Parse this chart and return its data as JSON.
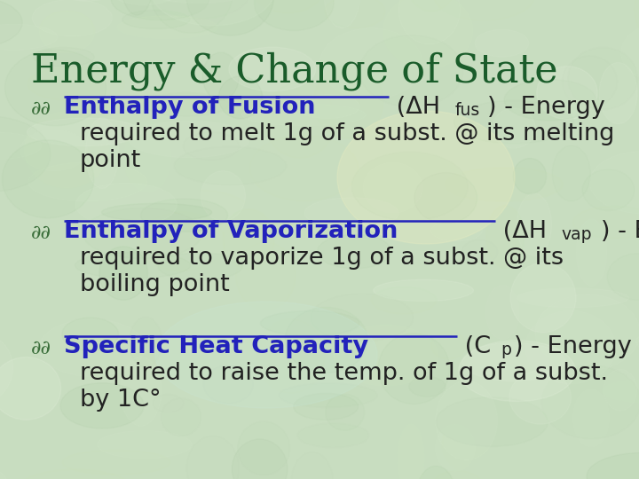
{
  "title": "Energy & Change of State",
  "title_color": "#1a5c2a",
  "title_fontsize": 32,
  "background_color": "#c8ddc0",
  "text_color": "#222222",
  "link_color": "#2222bb",
  "bullet_color": "#3a6e3a",
  "figsize": [
    7.2,
    5.4
  ],
  "dpi": 100,
  "bullets": [
    {
      "heading": "Enthalpy of Fusion",
      "formula_mid": " (ΔH",
      "sub": "fus",
      "formula_end": ") - Energy",
      "line2": "required to melt 1g of a subst. @ its melting",
      "line3": "point"
    },
    {
      "heading": "Enthalpy of Vaporization",
      "formula_mid": " (ΔH",
      "sub": "vap",
      "formula_end": ") - Energy",
      "line2": "required to vaporize 1g of a subst. @ its",
      "line3": "boiling point"
    },
    {
      "heading": "Specific Heat Capacity",
      "formula_mid": " (C",
      "sub": "p",
      "formula_end": ") - Energy",
      "line2": "required to raise the temp. of 1g of a subst.",
      "line3": "by 1C°"
    }
  ]
}
